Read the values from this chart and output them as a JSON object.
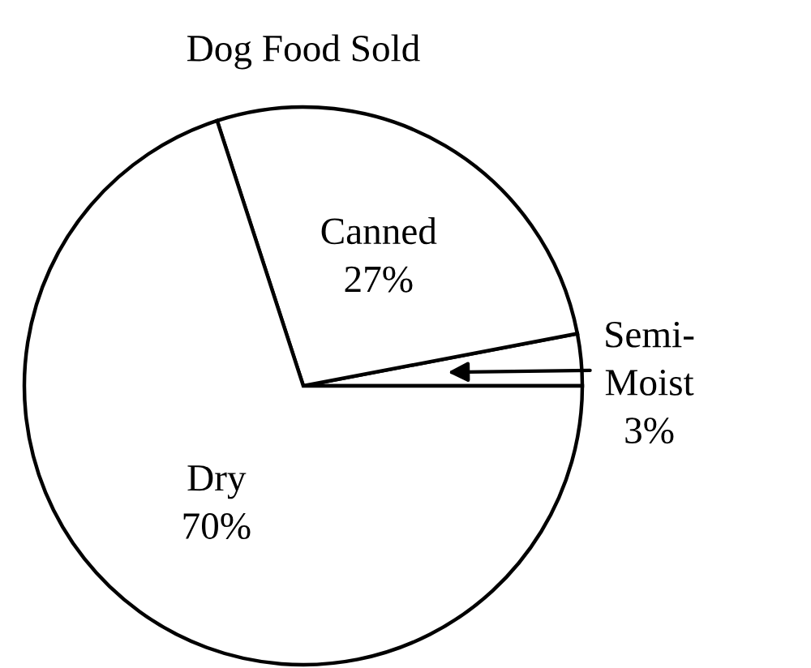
{
  "chart_data": {
    "type": "pie",
    "title": "Dog Food Sold",
    "categories": [
      "Semi-\nMoist",
      "Canned",
      "Dry"
    ],
    "values": [
      3,
      27,
      70
    ],
    "colors": [
      "#ffffff",
      "#ffffff",
      "#ffffff"
    ],
    "value_labels": [
      "3%",
      "27%",
      "70%"
    ]
  }
}
